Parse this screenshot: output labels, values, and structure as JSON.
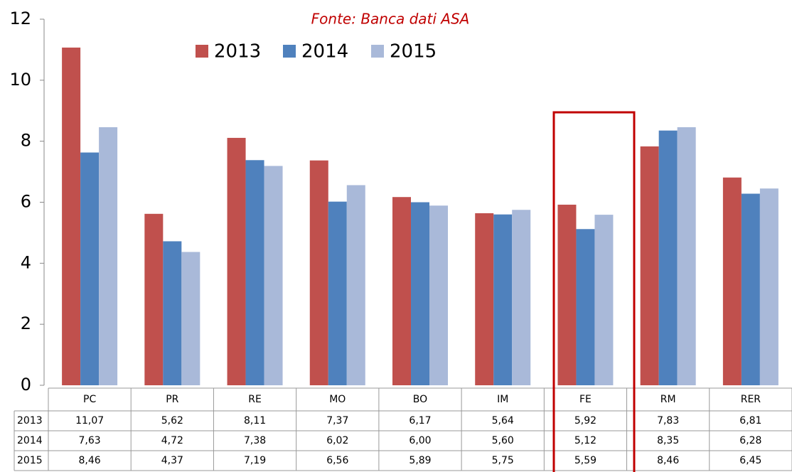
{
  "chart_data": {
    "type": "bar",
    "title": "Fonte: Banca dati ASA",
    "categories": [
      "PC",
      "PR",
      "RE",
      "MO",
      "BO",
      "IM",
      "FE",
      "RM",
      "RER"
    ],
    "series": [
      {
        "name": "2013",
        "color": "#c0504d",
        "values": [
          11.07,
          5.62,
          8.11,
          7.37,
          6.17,
          5.64,
          5.92,
          7.83,
          6.81
        ],
        "value_labels": [
          "11,07",
          "5,62",
          "8,11",
          "7,37",
          "6,17",
          "5,64",
          "5,92",
          "7,83",
          "6,81"
        ]
      },
      {
        "name": "2014",
        "color": "#4f81bd",
        "values": [
          7.63,
          4.72,
          7.38,
          6.02,
          6.0,
          5.6,
          5.12,
          8.35,
          6.28
        ],
        "value_labels": [
          "7,63",
          "4,72",
          "7,38",
          "6,02",
          "6,00",
          "5,60",
          "5,12",
          "8,35",
          "6,28"
        ]
      },
      {
        "name": "2015",
        "color": "#a9b9d9",
        "values": [
          8.46,
          4.37,
          7.19,
          6.56,
          5.89,
          5.75,
          5.59,
          8.46,
          6.45
        ],
        "value_labels": [
          "8,46",
          "4,37",
          "7,19",
          "6,56",
          "5,89",
          "5,75",
          "5,59",
          "8,46",
          "6,45"
        ]
      }
    ],
    "ylim": [
      0,
      12
    ],
    "yticks": [
      0,
      2,
      4,
      6,
      8,
      10,
      12
    ],
    "grid": false
  }
}
